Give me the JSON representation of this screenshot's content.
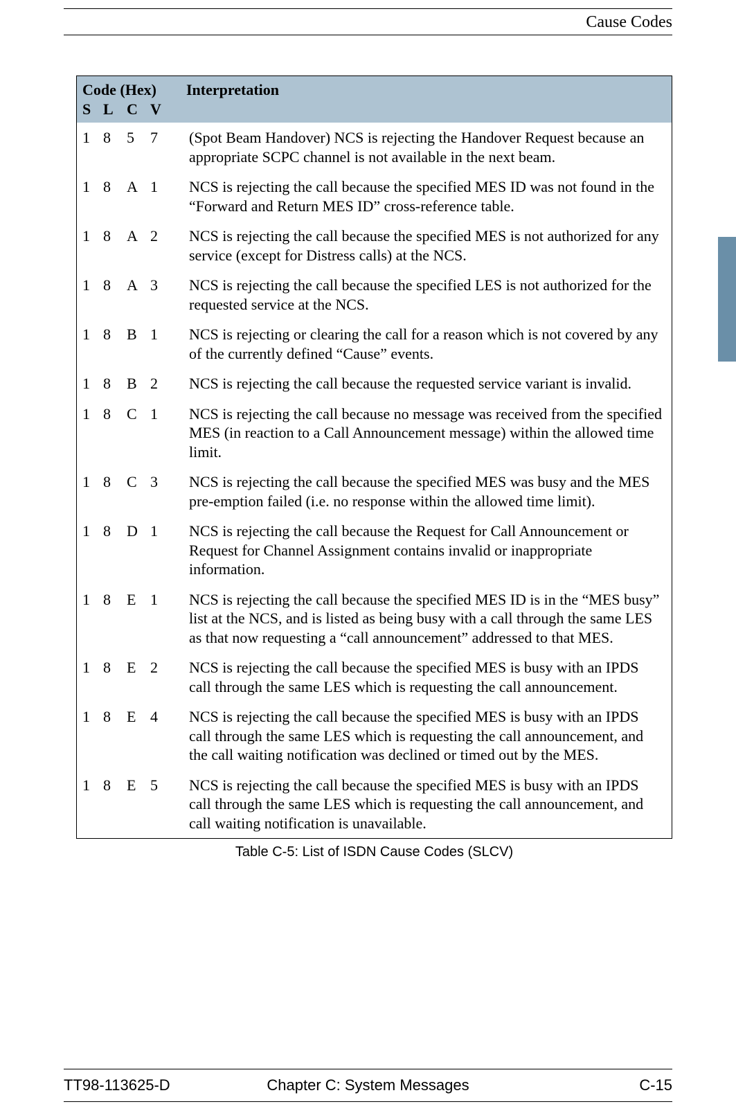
{
  "header": {
    "title": "Cause Codes"
  },
  "colors": {
    "header_bg": "#aec3d2",
    "side_tab": "#6a8fa8",
    "rule": "#000000",
    "page_bg": "#ffffff",
    "text": "#000000"
  },
  "table": {
    "group_header": "Code (Hex)",
    "columns": {
      "s": "S",
      "l": "L",
      "c": "C",
      "v": "V",
      "interpretation": "Interpretation"
    },
    "rows": [
      {
        "s": "1",
        "l": "8",
        "c": "5",
        "v": "7",
        "interpretation": "(Spot Beam Handover) NCS is rejecting the Handover Request because an appropriate SCPC channel is not available in the next beam."
      },
      {
        "s": "1",
        "l": "8",
        "c": "A",
        "v": "1",
        "interpretation": "NCS is rejecting the call because the specified MES ID was not found in the “Forward and Return MES ID” cross-reference table."
      },
      {
        "s": "1",
        "l": "8",
        "c": "A",
        "v": "2",
        "interpretation": "NCS is rejecting the call because the specified MES is not authorized for any service (except for Distress calls) at the NCS."
      },
      {
        "s": "1",
        "l": "8",
        "c": "A",
        "v": "3",
        "interpretation": "NCS is rejecting the call because the specified LES is not authorized for the requested service at the NCS."
      },
      {
        "s": "1",
        "l": "8",
        "c": "B",
        "v": "1",
        "interpretation": "NCS is rejecting or clearing the call for a reason which is not covered by any of the currently defined “Cause” events."
      },
      {
        "s": "1",
        "l": "8",
        "c": "B",
        "v": "2",
        "interpretation": "NCS is rejecting the call because the requested service variant is invalid."
      },
      {
        "s": "1",
        "l": "8",
        "c": "C",
        "v": "1",
        "interpretation": "NCS is rejecting the call because no message was received from the specified MES (in reaction to a Call Announcement message) within the allowed time limit."
      },
      {
        "s": "1",
        "l": "8",
        "c": "C",
        "v": "3",
        "interpretation": "NCS is rejecting the call because the specified MES was busy and the MES pre-emption failed (i.e. no response within the allowed time limit)."
      },
      {
        "s": "1",
        "l": "8",
        "c": "D",
        "v": "1",
        "interpretation": "NCS is rejecting the call because the Request for Call Announcement or Request for Channel Assignment contains invalid or inappropriate information."
      },
      {
        "s": "1",
        "l": "8",
        "c": "E",
        "v": "1",
        "interpretation": "NCS is rejecting the call because the specified MES ID is in the “MES busy” list at the NCS, and is listed as being busy with a call through the same LES as that now requesting a “call announcement” addressed to that MES."
      },
      {
        "s": "1",
        "l": "8",
        "c": "E",
        "v": "2",
        "interpretation": "NCS is rejecting the call because the specified MES is busy with an IPDS call through the same LES which is requesting the call announcement."
      },
      {
        "s": "1",
        "l": "8",
        "c": "E",
        "v": "4",
        "interpretation": "NCS is rejecting the call because the specified MES is busy with an IPDS call through the same LES which is requesting the call announcement, and the call waiting notification was declined or timed out by the MES."
      },
      {
        "s": "1",
        "l": "8",
        "c": "E",
        "v": "5",
        "interpretation": "NCS is rejecting the call because the specified MES is busy with an IPDS call through the same LES which is requesting the call announcement, and call waiting notification is unavailable."
      }
    ],
    "caption": "Table C-5: List of ISDN Cause Codes (SLCV)"
  },
  "footer": {
    "left": "TT98-113625-D",
    "center": "Chapter C:  System Messages",
    "right": "C-15"
  }
}
